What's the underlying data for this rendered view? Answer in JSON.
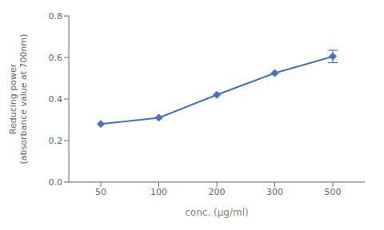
{
  "chart_data": {
    "type": "line",
    "categories": [
      "50",
      "100",
      "200",
      "300",
      "500"
    ],
    "values": [
      0.28,
      0.31,
      0.42,
      0.525,
      0.605
    ],
    "errors": [
      0.0,
      0.0,
      0.0,
      0.0,
      0.03
    ],
    "color": "#4472C4",
    "marker": "diamond",
    "x_label": "conc. (μg/ml)",
    "y_label": "Reducing power\n(absorbance value at 700nm)",
    "ylim": [
      0,
      0.8
    ],
    "yticks": [
      {
        "value": 0,
        "label": "0.0"
      },
      0.2,
      0.4,
      0.6,
      0.8
    ],
    "grid": false
  }
}
